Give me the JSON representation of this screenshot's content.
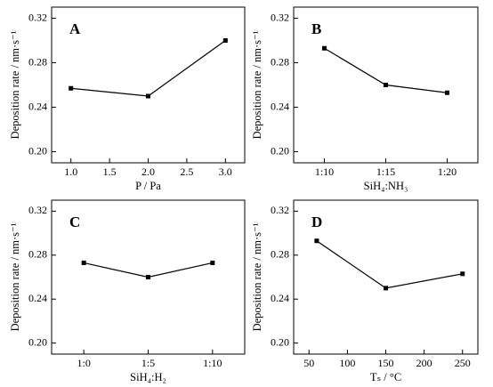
{
  "chart_data": [
    {
      "type": "line",
      "annotation": "A",
      "xlabel": "P / Pa",
      "ylabel": "Deposition rate / nm·s⁻¹",
      "x": [
        1.0,
        2.0,
        3.0
      ],
      "values": [
        0.257,
        0.25,
        0.3
      ],
      "color": "#000000",
      "xlim": [
        0.75,
        3.25
      ],
      "xticks": [
        {
          "value": 1,
          "label": "1.0"
        },
        1.5,
        {
          "value": 2,
          "label": "2.0"
        },
        2.5,
        {
          "value": 3,
          "label": "3.0"
        }
      ],
      "ylim": [
        0.19,
        0.33
      ],
      "yticks": [
        {
          "value": 0.2,
          "label": "0.20"
        },
        0.24,
        0.28,
        0.32
      ]
    },
    {
      "type": "line",
      "annotation": "B",
      "xlabel": "SiH₄:NH₃",
      "ylabel": "Deposition rate / nm·s⁻¹",
      "categories": [
        "1:10",
        "1:15",
        "1:20"
      ],
      "values": [
        0.293,
        0.26,
        0.253
      ],
      "color": "#000000",
      "ylim": [
        0.19,
        0.33
      ],
      "yticks": [
        {
          "value": 0.2,
          "label": "0.20"
        },
        0.24,
        0.28,
        0.32
      ]
    },
    {
      "type": "line",
      "annotation": "C",
      "xlabel": "SiH₄:H₂",
      "ylabel": "Deposition rate / nm·s⁻¹",
      "categories": [
        "1:0",
        "1:5",
        "1:10"
      ],
      "values": [
        0.273,
        0.26,
        0.273
      ],
      "color": "#000000",
      "ylim": [
        0.19,
        0.33
      ],
      "yticks": [
        {
          "value": 0.2,
          "label": "0.20"
        },
        0.24,
        0.28,
        0.32
      ]
    },
    {
      "type": "line",
      "annotation": "D",
      "xlabel": "Tₛ / °C",
      "ylabel": "Deposition rate / nm·s⁻¹",
      "x": [
        60,
        150,
        250
      ],
      "values": [
        0.293,
        0.25,
        0.263
      ],
      "color": "#000000",
      "xlim": [
        30,
        270
      ],
      "xticks": [
        50,
        100,
        150,
        200,
        250
      ],
      "ylim": [
        0.19,
        0.33
      ],
      "yticks": [
        {
          "value": 0.2,
          "label": "0.20"
        },
        0.24,
        0.28,
        0.32
      ]
    }
  ]
}
